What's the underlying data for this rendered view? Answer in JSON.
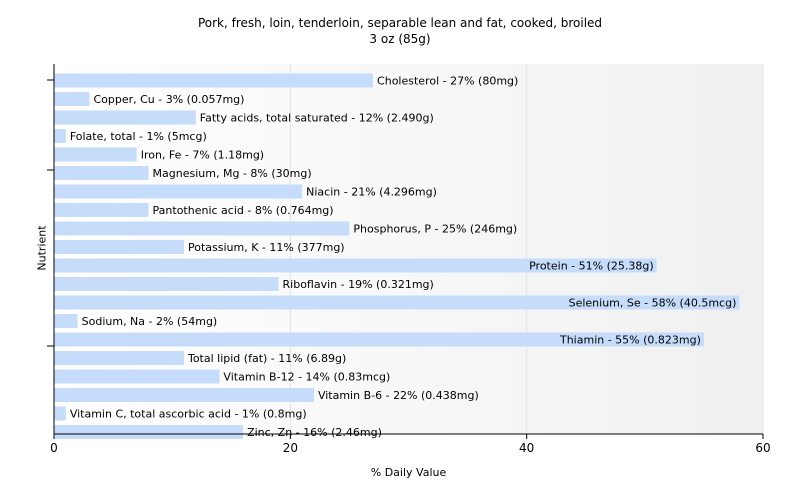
{
  "chart_data": {
    "type": "bar",
    "orientation": "horizontal",
    "title": "Pork, fresh, loin, tenderloin, separable lean and fat, cooked, broiled",
    "subtitle": "3 oz (85g)",
    "xlabel": "% Daily Value",
    "ylabel": "Nutrient",
    "xlim": [
      0,
      60
    ],
    "xticks": [
      "0",
      "20",
      "40",
      "60"
    ],
    "grid": true,
    "bar_color": "#c6dcfb",
    "categories": [
      "Cholesterol",
      "Copper, Cu",
      "Fatty acids, total saturated",
      "Folate, total",
      "Iron, Fe",
      "Magnesium, Mg",
      "Niacin",
      "Pantothenic acid",
      "Phosphorus, P",
      "Potassium, K",
      "Protein",
      "Riboflavin",
      "Selenium, Se",
      "Sodium, Na",
      "Thiamin",
      "Total lipid (fat)",
      "Vitamin B-12",
      "Vitamin B-6",
      "Vitamin C, total ascorbic acid",
      "Zinc, Zn"
    ],
    "values": [
      27,
      3,
      12,
      1,
      7,
      8,
      21,
      8,
      25,
      11,
      51,
      19,
      58,
      2,
      55,
      11,
      14,
      22,
      1,
      16
    ],
    "labels": [
      "Cholesterol - 27% (80mg)",
      "Copper, Cu - 3% (0.057mg)",
      "Fatty acids, total saturated - 12% (2.490g)",
      "Folate, total - 1% (5mcg)",
      "Iron, Fe - 7% (1.18mg)",
      "Magnesium, Mg - 8% (30mg)",
      "Niacin - 21% (4.296mg)",
      "Pantothenic acid - 8% (0.764mg)",
      "Phosphorus, P - 25% (246mg)",
      "Potassium, K - 11% (377mg)",
      "Protein - 51% (25.38g)",
      "Riboflavin - 19% (0.321mg)",
      "Selenium, Se - 58% (40.5mcg)",
      "Sodium, Na - 2% (54mg)",
      "Thiamin - 55% (0.823mg)",
      "Total lipid (fat) - 11% (6.89g)",
      "Vitamin B-12 - 14% (0.83mcg)",
      "Vitamin B-6 - 22% (0.438mg)",
      "Vitamin C, total ascorbic acid - 1% (0.8mg)",
      "Zinc, Zn - 16% (2.46mg)"
    ]
  }
}
